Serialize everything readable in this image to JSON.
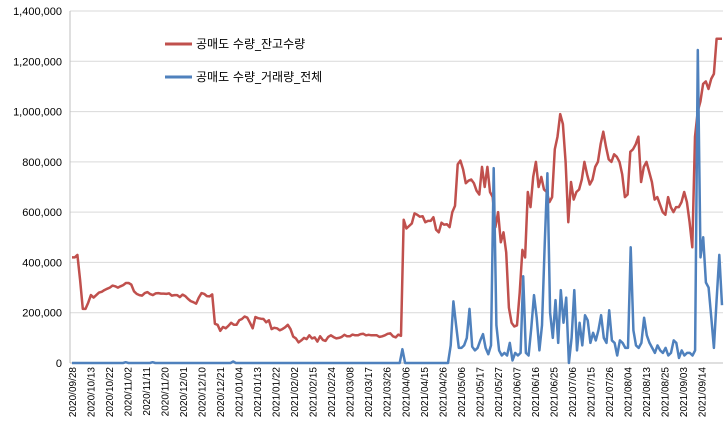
{
  "chart_data": {
    "type": "line",
    "title": "",
    "xlabel": "",
    "ylabel": "",
    "ylim": [
      0,
      1400000
    ],
    "y_ticks": [
      0,
      200000,
      400000,
      600000,
      800000,
      1000000,
      1200000,
      1400000
    ],
    "y_tick_labels": [
      "0",
      "200,000",
      "400,000",
      "600,000",
      "800,000",
      "1,000,000",
      "1,200,000",
      "1,400,000"
    ],
    "grid": "horizontal",
    "legend_position": "top-left",
    "x_tick_labels": [
      "2020/09/28",
      "2020/10/13",
      "2020/10/22",
      "2020/11/02",
      "2020/11/11",
      "2020/11/20",
      "2020/12/01",
      "2020/12/10",
      "2020/12/21",
      "2021/01/04",
      "2021/01/13",
      "2021/01/22",
      "2021/02/02",
      "2021/02/15",
      "2021/02/24",
      "2021/03/08",
      "2021/03/17",
      "2021/03/26",
      "2021/04/06",
      "2021/04/15",
      "2021/04/26",
      "2021/05/06",
      "2021/05/17",
      "2021/05/27",
      "2021/06/07",
      "2021/06/16",
      "2021/06/25",
      "2021/07/06",
      "2021/07/15",
      "2021/07/26",
      "2021/08/04",
      "2021/08/13",
      "2021/08/25",
      "2021/09/03",
      "2021/09/14"
    ],
    "series": [
      {
        "name": "공매도 수량_잔고수량",
        "color": "#c0504d",
        "values": [
          420000,
          420000,
          430000,
          330000,
          215000,
          215000,
          240000,
          270000,
          260000,
          270000,
          280000,
          283000,
          290000,
          295000,
          300000,
          308000,
          305000,
          300000,
          305000,
          310000,
          318000,
          318000,
          312000,
          285000,
          275000,
          270000,
          268000,
          278000,
          282000,
          274000,
          270000,
          277000,
          278000,
          276000,
          276000,
          275000,
          277000,
          268000,
          270000,
          270000,
          262000,
          272000,
          266000,
          255000,
          246000,
          242000,
          236000,
          260000,
          278000,
          275000,
          266000,
          265000,
          273000,
          156000,
          152000,
          128000,
          143000,
          138000,
          148000,
          160000,
          152000,
          152000,
          170000,
          175000,
          185000,
          180000,
          160000,
          138000,
          183000,
          178000,
          176000,
          175000,
          162000,
          170000,
          135000,
          140000,
          138000,
          130000,
          135000,
          142000,
          152000,
          135000,
          105000,
          98000,
          82000,
          90000,
          100000,
          95000,
          110000,
          98000,
          102000,
          85000,
          106000,
          92000,
          88000,
          104000,
          110000,
          103000,
          98000,
          100000,
          104000,
          112000,
          106000,
          106000,
          113000,
          110000,
          110000,
          115000,
          116000,
          110000,
          112000,
          110000,
          110000,
          110000,
          104000,
          106000,
          110000,
          116000,
          118000,
          106000,
          102000,
          113000,
          108000,
          570000,
          535000,
          545000,
          555000,
          595000,
          590000,
          582000,
          584000,
          560000,
          565000,
          565000,
          580000,
          530000,
          520000,
          558000,
          550000,
          552000,
          540000,
          600000,
          625000,
          790000,
          805000,
          770000,
          715000,
          725000,
          730000,
          715000,
          685000,
          670000,
          780000,
          700000,
          780000,
          680000,
          660000,
          540000,
          600000,
          480000,
          520000,
          440000,
          220000,
          160000,
          145000,
          150000,
          280000,
          450000,
          420000,
          680000,
          620000,
          740000,
          800000,
          700000,
          740000,
          690000,
          680000,
          640000,
          660000,
          850000,
          900000,
          990000,
          950000,
          800000,
          560000,
          720000,
          650000,
          680000,
          690000,
          730000,
          800000,
          750000,
          710000,
          730000,
          780000,
          800000,
          870000,
          920000,
          860000,
          810000,
          800000,
          830000,
          820000,
          800000,
          750000,
          660000,
          670000,
          840000,
          850000,
          870000,
          900000,
          720000,
          780000,
          800000,
          760000,
          720000,
          650000,
          660000,
          630000,
          600000,
          590000,
          660000,
          620000,
          600000,
          620000,
          620000,
          640000,
          680000,
          640000,
          560000,
          460000,
          900000,
          1000000,
          1040000,
          1110000,
          1120000,
          1090000,
          1130000,
          1150000,
          1290000,
          1290000,
          1290000
        ]
      },
      {
        "name": "공매도 수량_거래량_전체",
        "color": "#4f81bd",
        "values": [
          0,
          0,
          0,
          0,
          0,
          0,
          0,
          0,
          0,
          0,
          0,
          0,
          0,
          0,
          0,
          0,
          0,
          0,
          0,
          0,
          3000,
          0,
          0,
          0,
          0,
          0,
          0,
          0,
          0,
          0,
          3000,
          0,
          0,
          0,
          0,
          0,
          0,
          0,
          0,
          0,
          0,
          0,
          0,
          0,
          0,
          0,
          0,
          0,
          0,
          0,
          0,
          0,
          0,
          0,
          0,
          0,
          0,
          0,
          0,
          0,
          6000,
          0,
          0,
          0,
          0,
          0,
          0,
          0,
          0,
          0,
          0,
          0,
          0,
          0,
          0,
          0,
          0,
          0,
          0,
          0,
          0,
          0,
          0,
          0,
          0,
          0,
          0,
          0,
          0,
          0,
          0,
          0,
          0,
          0,
          0,
          0,
          0,
          0,
          0,
          0,
          0,
          0,
          0,
          0,
          0,
          0,
          0,
          0,
          0,
          0,
          0,
          0,
          0,
          0,
          0,
          0,
          0,
          0,
          0,
          0,
          0,
          0,
          0,
          55000,
          0,
          0,
          0,
          0,
          0,
          0,
          0,
          0,
          0,
          0,
          0,
          0,
          0,
          0,
          0,
          0,
          0,
          70000,
          245000,
          150000,
          60000,
          60000,
          70000,
          100000,
          215000,
          65000,
          50000,
          60000,
          90000,
          115000,
          60000,
          35000,
          70000,
          775000,
          150000,
          50000,
          30000,
          40000,
          30000,
          80000,
          10000,
          40000,
          30000,
          40000,
          345000,
          40000,
          30000,
          140000,
          270000,
          180000,
          50000,
          150000,
          470000,
          755000,
          200000,
          100000,
          250000,
          80000,
          290000,
          160000,
          260000,
          0,
          100000,
          290000,
          50000,
          160000,
          70000,
          190000,
          170000,
          80000,
          120000,
          90000,
          130000,
          190000,
          100000,
          80000,
          210000,
          90000,
          80000,
          30000,
          90000,
          80000,
          60000,
          60000,
          460000,
          130000,
          70000,
          60000,
          80000,
          180000,
          110000,
          80000,
          60000,
          40000,
          70000,
          50000,
          40000,
          60000,
          30000,
          40000,
          90000,
          80000,
          20000,
          50000,
          30000,
          40000,
          40000,
          30000,
          50000,
          1245000,
          420000,
          500000,
          320000,
          300000,
          180000,
          60000,
          250000,
          430000,
          230000
        ]
      }
    ]
  }
}
